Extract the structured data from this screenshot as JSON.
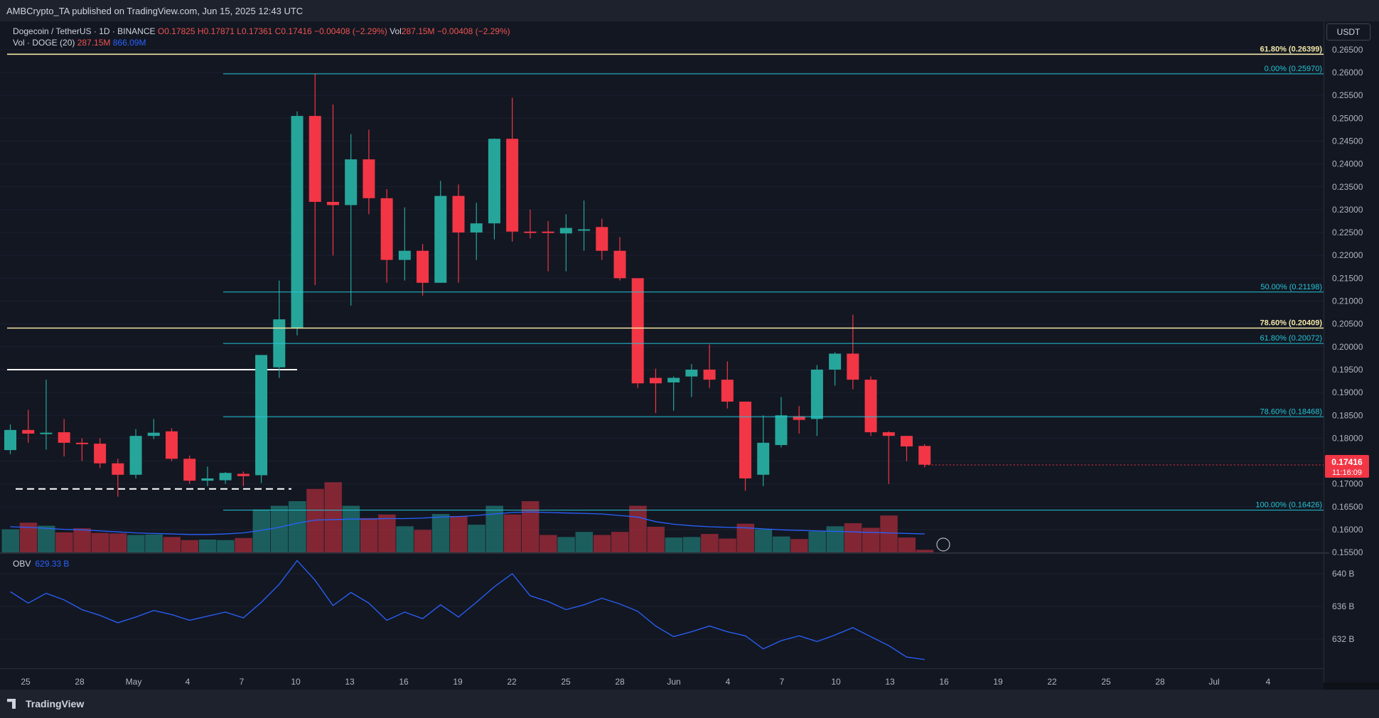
{
  "header": {
    "publisher": "AMBCrypto_TA published on TradingView.com, Jun 15, 2025 12:43 UTC"
  },
  "legend": {
    "symbol": "Dogecoin / TetherUS · 1D · BINANCE",
    "ohlc": "O0.17825 H0.17871 L0.17361 C0.17416 −0.00408 (−2.29%)",
    "vol_inline": "Vol",
    "vol_inline_value": "287.15M −0.00408 (−2.29%)",
    "vol_label": "Vol · DOGE (20)",
    "vol_value": "287.15M",
    "vol_ma_value": "866.09M"
  },
  "currency_button": "USDT",
  "obv": {
    "label": "OBV",
    "value": "629.33 B"
  },
  "footer": {
    "logo": "TradingView"
  },
  "colors": {
    "up": "#26a69a",
    "down": "#f23645",
    "fib_cyan": "#22c6d6",
    "fib_gold": "#f2e6a5",
    "ma": "#2962ff"
  },
  "chart_data": [
    {
      "type": "candlestick",
      "title": "Dogecoin / TetherUS · 1D · BINANCE",
      "x_ticks": [
        "25",
        "28",
        "May",
        "4",
        "7",
        "10",
        "13",
        "16",
        "19",
        "22",
        "25",
        "28",
        "Jun",
        "4",
        "7",
        "10",
        "13",
        "16",
        "19",
        "22",
        "25",
        "28",
        "Jul",
        "4"
      ],
      "y_ticks": [
        "0.26500",
        "0.26000",
        "0.25500",
        "0.25000",
        "0.24500",
        "0.24000",
        "0.23500",
        "0.23000",
        "0.22500",
        "0.22000",
        "0.21500",
        "0.21000",
        "0.20500",
        "0.20000",
        "0.19500",
        "0.19000",
        "0.18500",
        "0.18000",
        "0.17500",
        "0.17000",
        "0.16500",
        "0.16000",
        "0.15500"
      ],
      "ylim": [
        0.155,
        0.2675
      ],
      "candles": [
        {
          "o": 0.1774,
          "h": 0.183,
          "l": 0.1765,
          "c": 0.1818
        },
        {
          "o": 0.1818,
          "h": 0.1862,
          "l": 0.179,
          "c": 0.181
        },
        {
          "o": 0.181,
          "h": 0.1928,
          "l": 0.1775,
          "c": 0.1812
        },
        {
          "o": 0.1813,
          "h": 0.1842,
          "l": 0.176,
          "c": 0.179
        },
        {
          "o": 0.179,
          "h": 0.18,
          "l": 0.175,
          "c": 0.1788
        },
        {
          "o": 0.1788,
          "h": 0.18,
          "l": 0.1735,
          "c": 0.1745
        },
        {
          "o": 0.1745,
          "h": 0.1755,
          "l": 0.1672,
          "c": 0.172
        },
        {
          "o": 0.172,
          "h": 0.182,
          "l": 0.1712,
          "c": 0.1805
        },
        {
          "o": 0.1805,
          "h": 0.1842,
          "l": 0.1798,
          "c": 0.1812
        },
        {
          "o": 0.1815,
          "h": 0.1822,
          "l": 0.175,
          "c": 0.1755
        },
        {
          "o": 0.1755,
          "h": 0.1762,
          "l": 0.17,
          "c": 0.1707
        },
        {
          "o": 0.1707,
          "h": 0.1738,
          "l": 0.1695,
          "c": 0.1712
        },
        {
          "o": 0.1708,
          "h": 0.1726,
          "l": 0.17,
          "c": 0.1724
        },
        {
          "o": 0.1722,
          "h": 0.1727,
          "l": 0.1695,
          "c": 0.1717
        },
        {
          "o": 0.1719,
          "h": 0.1982,
          "l": 0.1702,
          "c": 0.1982
        },
        {
          "o": 0.1955,
          "h": 0.2145,
          "l": 0.1932,
          "c": 0.206
        },
        {
          "o": 0.204,
          "h": 0.2515,
          "l": 0.2025,
          "c": 0.2505
        },
        {
          "o": 0.2505,
          "h": 0.2597,
          "l": 0.2135,
          "c": 0.2317
        },
        {
          "o": 0.2317,
          "h": 0.253,
          "l": 0.22,
          "c": 0.231
        },
        {
          "o": 0.231,
          "h": 0.2465,
          "l": 0.209,
          "c": 0.241
        },
        {
          "o": 0.241,
          "h": 0.2475,
          "l": 0.229,
          "c": 0.2325
        },
        {
          "o": 0.2325,
          "h": 0.2345,
          "l": 0.214,
          "c": 0.219
        },
        {
          "o": 0.219,
          "h": 0.2305,
          "l": 0.2145,
          "c": 0.221
        },
        {
          "o": 0.221,
          "h": 0.2225,
          "l": 0.2112,
          "c": 0.214
        },
        {
          "o": 0.214,
          "h": 0.2363,
          "l": 0.214,
          "c": 0.233
        },
        {
          "o": 0.233,
          "h": 0.2355,
          "l": 0.214,
          "c": 0.225
        },
        {
          "o": 0.225,
          "h": 0.2315,
          "l": 0.219,
          "c": 0.227
        },
        {
          "o": 0.227,
          "h": 0.2456,
          "l": 0.2235,
          "c": 0.2455
        },
        {
          "o": 0.2455,
          "h": 0.2545,
          "l": 0.223,
          "c": 0.2252
        },
        {
          "o": 0.2252,
          "h": 0.23,
          "l": 0.2237,
          "c": 0.225
        },
        {
          "o": 0.2252,
          "h": 0.2275,
          "l": 0.2165,
          "c": 0.225
        },
        {
          "o": 0.2248,
          "h": 0.229,
          "l": 0.2165,
          "c": 0.226
        },
        {
          "o": 0.2257,
          "h": 0.232,
          "l": 0.221,
          "c": 0.2257
        },
        {
          "o": 0.2262,
          "h": 0.228,
          "l": 0.219,
          "c": 0.221
        },
        {
          "o": 0.221,
          "h": 0.224,
          "l": 0.2145,
          "c": 0.215
        },
        {
          "o": 0.215,
          "h": 0.215,
          "l": 0.191,
          "c": 0.192
        },
        {
          "o": 0.1932,
          "h": 0.1952,
          "l": 0.1855,
          "c": 0.192
        },
        {
          "o": 0.1922,
          "h": 0.1935,
          "l": 0.186,
          "c": 0.1932
        },
        {
          "o": 0.1935,
          "h": 0.1962,
          "l": 0.189,
          "c": 0.195
        },
        {
          "o": 0.195,
          "h": 0.2005,
          "l": 0.191,
          "c": 0.1928
        },
        {
          "o": 0.1928,
          "h": 0.1968,
          "l": 0.1865,
          "c": 0.188
        },
        {
          "o": 0.188,
          "h": 0.188,
          "l": 0.1685,
          "c": 0.1712
        },
        {
          "o": 0.172,
          "h": 0.185,
          "l": 0.1695,
          "c": 0.179
        },
        {
          "o": 0.1785,
          "h": 0.189,
          "l": 0.178,
          "c": 0.185
        },
        {
          "o": 0.1848,
          "h": 0.187,
          "l": 0.181,
          "c": 0.184
        },
        {
          "o": 0.1842,
          "h": 0.196,
          "l": 0.1805,
          "c": 0.195
        },
        {
          "o": 0.195,
          "h": 0.1988,
          "l": 0.1915,
          "c": 0.1985
        },
        {
          "o": 0.1985,
          "h": 0.207,
          "l": 0.1907,
          "c": 0.1928
        },
        {
          "o": 0.1928,
          "h": 0.1935,
          "l": 0.1805,
          "c": 0.1813
        },
        {
          "o": 0.1813,
          "h": 0.1815,
          "l": 0.17,
          "c": 0.1805
        },
        {
          "o": 0.1805,
          "h": 0.1805,
          "l": 0.175,
          "c": 0.1782
        },
        {
          "o": 0.1783,
          "h": 0.1787,
          "l": 0.1736,
          "c": 0.1742
        }
      ],
      "annotations": [
        {
          "label": "61.80% (0.26399)",
          "value": 0.26399,
          "color": "#f2e6a5"
        },
        {
          "label": "0.00% (0.25970)",
          "value": 0.2597,
          "color": "#22c6d6"
        },
        {
          "label": "50.00% (0.21198)",
          "value": 0.21198,
          "color": "#22c6d6"
        },
        {
          "label": "78.60% (0.20409)",
          "value": 0.20409,
          "color": "#f2e6a5"
        },
        {
          "label": "61.80% (0.20072)",
          "value": 0.20072,
          "color": "#22c6d6"
        },
        {
          "label": "78.60% (0.18468)",
          "value": 0.18468,
          "color": "#22c6d6"
        },
        {
          "label": "100.00% (0.16426)",
          "value": 0.16426,
          "color": "#22c6d6"
        }
      ],
      "horizontal_levels": [
        {
          "value": 0.195,
          "style": "solid",
          "color": "#ffffff"
        },
        {
          "value": 0.1689,
          "style": "dashed",
          "color": "#ffffff"
        }
      ],
      "last_price": {
        "value": "0.17416",
        "countdown": "11:16:09"
      },
      "grid": true
    },
    {
      "type": "bar",
      "title": "Vol · DOGE (20)",
      "relative_values": [
        0.45,
        0.58,
        0.52,
        0.39,
        0.47,
        0.38,
        0.37,
        0.34,
        0.35,
        0.3,
        0.24,
        0.25,
        0.24,
        0.28,
        0.84,
        0.91,
        1.0,
        1.24,
        1.37,
        0.91,
        0.67,
        0.74,
        0.51,
        0.44,
        0.75,
        0.71,
        0.54,
        0.91,
        0.74,
        1.0,
        0.34,
        0.3,
        0.4,
        0.34,
        0.4,
        0.91,
        0.5,
        0.29,
        0.3,
        0.36,
        0.27,
        0.56,
        0.45,
        0.31,
        0.26,
        0.41,
        0.51,
        0.57,
        0.48,
        0.72,
        0.29,
        0.05
      ],
      "ma_relative": [
        0.5,
        0.49,
        0.47,
        0.45,
        0.44,
        0.42,
        0.4,
        0.38,
        0.37,
        0.36,
        0.35,
        0.35,
        0.36,
        0.38,
        0.43,
        0.49,
        0.57,
        0.63,
        0.64,
        0.65,
        0.65,
        0.66,
        0.66,
        0.67,
        0.69,
        0.7,
        0.72,
        0.75,
        0.78,
        0.79,
        0.78,
        0.77,
        0.76,
        0.75,
        0.72,
        0.69,
        0.6,
        0.55,
        0.52,
        0.5,
        0.49,
        0.48,
        0.46,
        0.44,
        0.43,
        0.42,
        0.41,
        0.4,
        0.39,
        0.38,
        0.37,
        0.36
      ]
    },
    {
      "type": "line",
      "title": "OBV",
      "y_ticks": [
        "640 B",
        "636 B",
        "632 B"
      ],
      "ylim": [
        628.5,
        642.5
      ],
      "values": [
        637.8,
        636.4,
        637.6,
        636.8,
        635.6,
        634.9,
        634.0,
        634.7,
        635.5,
        635.0,
        634.3,
        634.8,
        635.3,
        634.6,
        636.5,
        638.7,
        641.6,
        639.2,
        636.1,
        637.7,
        636.4,
        634.3,
        635.3,
        634.5,
        636.2,
        634.7,
        636.5,
        638.4,
        640.0,
        637.3,
        636.6,
        635.6,
        636.2,
        637.0,
        636.3,
        635.4,
        633.6,
        632.3,
        632.9,
        633.6,
        632.9,
        632.4,
        630.8,
        631.8,
        632.4,
        631.7,
        632.5,
        633.4,
        632.3,
        631.2,
        629.8,
        629.5
      ]
    }
  ]
}
